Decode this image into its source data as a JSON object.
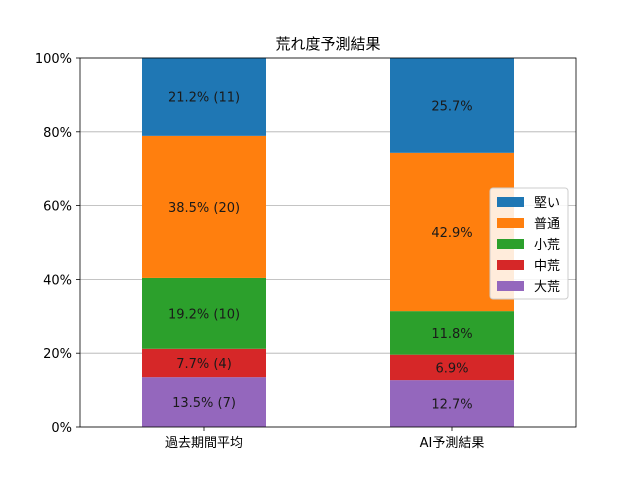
{
  "chart_data": {
    "type": "bar",
    "stacked": true,
    "title": "荒れ度予測結果",
    "xlabel": "",
    "ylabel": "",
    "ylim": [
      0,
      100
    ],
    "y_tick_format": "percent",
    "y_ticks": [
      "0%",
      "20%",
      "40%",
      "60%",
      "80%",
      "100%"
    ],
    "grid": "horizontal",
    "legend_position": "center-right",
    "categories": [
      "過去期間平均",
      "AI予測結果"
    ],
    "series": [
      {
        "name": "大荒",
        "color": "#9467bd",
        "values": [
          13.5,
          12.7
        ],
        "labels": [
          "13.5% (7)",
          "12.7%"
        ]
      },
      {
        "name": "中荒",
        "color": "#d62728",
        "values": [
          7.7,
          6.9
        ],
        "labels": [
          "7.7% (4)",
          "6.9%"
        ]
      },
      {
        "name": "小荒",
        "color": "#2ca02c",
        "values": [
          19.2,
          11.8
        ],
        "labels": [
          "19.2% (10)",
          "11.8%"
        ]
      },
      {
        "name": "普通",
        "color": "#ff7f0e",
        "values": [
          38.5,
          42.9
        ],
        "labels": [
          "38.5% (20)",
          "42.9%"
        ]
      },
      {
        "name": "堅い",
        "color": "#1f77b4",
        "values": [
          21.2,
          25.7
        ],
        "labels": [
          "21.2% (11)",
          "25.7%"
        ]
      }
    ],
    "legend_order": [
      "堅い",
      "普通",
      "小荒",
      "中荒",
      "大荒"
    ]
  }
}
